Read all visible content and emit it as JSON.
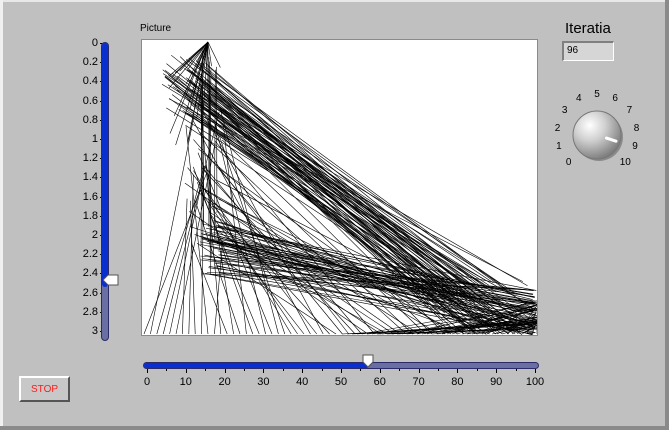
{
  "picture": {
    "label": "Picture"
  },
  "vertical_slider": {
    "ticks": [
      "0",
      "0.2",
      "0.4",
      "0.6",
      "0.8",
      "1",
      "1.2",
      "1.4",
      "1.6",
      "1.8",
      "2",
      "2.2",
      "2.4",
      "2.6",
      "2.8",
      "3"
    ],
    "min": 0,
    "max": 3,
    "value": 2.45
  },
  "horizontal_slider": {
    "ticks": [
      "0",
      "10",
      "20",
      "30",
      "40",
      "50",
      "60",
      "70",
      "80",
      "90",
      "100"
    ],
    "min": 0,
    "max": 100,
    "value": 57
  },
  "stop_button": {
    "label": "STOP"
  },
  "iteratia": {
    "label": "Iteratia",
    "value": "96"
  },
  "knob": {
    "ticks": [
      "0",
      "1",
      "2",
      "3",
      "4",
      "5",
      "6",
      "7",
      "8",
      "9",
      "10"
    ],
    "min": 0,
    "max": 10,
    "value": 9
  },
  "colors": {
    "accent": "#0a2fd0",
    "track": "#6a6fa3",
    "stop_text": "#ff1a1a",
    "panel": "#c0c0c0"
  }
}
